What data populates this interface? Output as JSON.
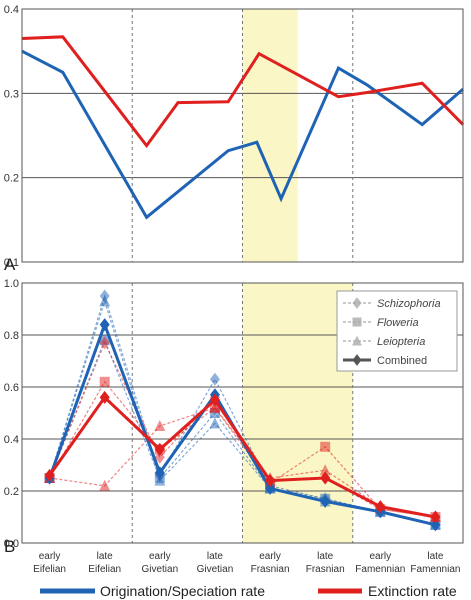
{
  "colors": {
    "origination": "#1f63b5",
    "extinction": "#e0201f",
    "highlight": "#fbf6c5",
    "grid": "#555555",
    "divider": "#777777"
  },
  "panel_letters": {
    "a": "A",
    "b": "B"
  },
  "chart_data": [
    {
      "type": "line",
      "panel": "A",
      "x": [
        0,
        1,
        2,
        3,
        4,
        5,
        6,
        7,
        8
      ],
      "xlim": [
        0,
        8
      ],
      "ylim": [
        0.1,
        0.4
      ],
      "yticks": [
        "0.1",
        "0.2",
        "0.3",
        "0.4"
      ],
      "highlight_x": [
        4,
        5
      ],
      "series": [
        {
          "name": "Origination/Speciation rate",
          "color": "#1f63b5",
          "x": [
            0,
            0.74,
            2.26,
            3.74,
            4.26,
            4.7,
            5.74,
            6.26,
            7.26,
            8
          ],
          "values": [
            0.35,
            0.325,
            0.153,
            0.232,
            0.242,
            0.175,
            0.33,
            0.31,
            0.263,
            0.305
          ]
        },
        {
          "name": "Extinction rate",
          "color": "#e0201f",
          "x": [
            0,
            0.74,
            2.26,
            2.83,
            3.74,
            4.3,
            5.74,
            6.26,
            7.26,
            8
          ],
          "values": [
            0.365,
            0.367,
            0.238,
            0.289,
            0.29,
            0.347,
            0.296,
            0.301,
            0.312,
            0.263
          ]
        }
      ]
    },
    {
      "type": "line",
      "panel": "B",
      "categories": [
        "early\nEifelian",
        "late\nEifelian",
        "early\nGivetian",
        "late\nGivetian",
        "early\nFrasnian",
        "late\nFrasnian",
        "early\nFamennian",
        "late\nFamennian"
      ],
      "category_lines": [
        [
          "early",
          "Eifelian"
        ],
        [
          "late",
          "Eifelian"
        ],
        [
          "early",
          "Givetian"
        ],
        [
          "late",
          "Givetian"
        ],
        [
          "early",
          "Frasnian"
        ],
        [
          "late",
          "Frasnian"
        ],
        [
          "early",
          "Famennian"
        ],
        [
          "late",
          "Famennian"
        ]
      ],
      "ylim": [
        0,
        1.0
      ],
      "yticks": [
        "0.0",
        "0.2",
        "0.4",
        "0.6",
        "0.8",
        "1.0"
      ],
      "highlight_categories": [
        "early\nFrasnian",
        "late\nFrasnian"
      ],
      "legend": {
        "placement": "top-right",
        "entries": [
          {
            "label": "Schizophoria",
            "marker": "diamond",
            "italic": true
          },
          {
            "label": "Floweria",
            "marker": "square",
            "italic": true
          },
          {
            "label": "Leiopteria",
            "marker": "triangle",
            "italic": true
          },
          {
            "label": "Combined",
            "marker": "diamond",
            "italic": false
          }
        ]
      },
      "series": [
        {
          "name": "Origination/Speciation rate",
          "taxon": "Schizophoria",
          "color": "#1f63b5",
          "marker": "diamond",
          "style": "dashed",
          "values": [
            0.25,
            0.95,
            0.26,
            0.63,
            0.22,
            0.17,
            0.12,
            0.07
          ]
        },
        {
          "name": "Origination/Speciation rate",
          "taxon": "Floweria",
          "color": "#1f63b5",
          "marker": "square",
          "style": "dashed",
          "values": [
            0.25,
            0.78,
            0.25,
            0.5,
            0.21,
            0.17,
            0.12,
            0.07
          ]
        },
        {
          "name": "Origination/Speciation rate",
          "taxon": "Leiopteria",
          "color": "#1f63b5",
          "marker": "triangle",
          "style": "dashed",
          "values": [
            0.25,
            0.93,
            0.24,
            0.46,
            0.21,
            0.16,
            0.12,
            0.07
          ]
        },
        {
          "name": "Origination/Speciation rate",
          "taxon": "Combined",
          "color": "#1f63b5",
          "marker": "diamond",
          "style": "solid",
          "values": [
            0.25,
            0.84,
            0.27,
            0.57,
            0.21,
            0.16,
            0.12,
            0.07
          ]
        },
        {
          "name": "Extinction rate",
          "taxon": "Schizophoria",
          "color": "#e0201f",
          "marker": "diamond",
          "style": "dashed",
          "values": [
            0.25,
            0.77,
            0.33,
            0.56,
            0.24,
            0.25,
            0.13,
            0.1
          ]
        },
        {
          "name": "Extinction rate",
          "taxon": "Floweria",
          "color": "#e0201f",
          "marker": "square",
          "style": "dashed",
          "values": [
            0.25,
            0.62,
            0.36,
            0.52,
            0.23,
            0.37,
            0.13,
            0.1
          ]
        },
        {
          "name": "Extinction rate",
          "taxon": "Leiopteria",
          "color": "#e0201f",
          "marker": "triangle",
          "style": "dashed",
          "values": [
            0.25,
            0.22,
            0.45,
            0.52,
            0.25,
            0.28,
            0.14,
            0.1
          ]
        },
        {
          "name": "Extinction rate",
          "taxon": "Combined",
          "color": "#e0201f",
          "marker": "diamond",
          "style": "solid",
          "values": [
            0.26,
            0.56,
            0.36,
            0.55,
            0.24,
            0.25,
            0.14,
            0.1
          ]
        }
      ]
    }
  ],
  "bottom_legend": [
    {
      "label": "Origination/Speciation rate",
      "color": "#1f63b5"
    },
    {
      "label": "Extinction rate",
      "color": "#e0201f"
    }
  ]
}
